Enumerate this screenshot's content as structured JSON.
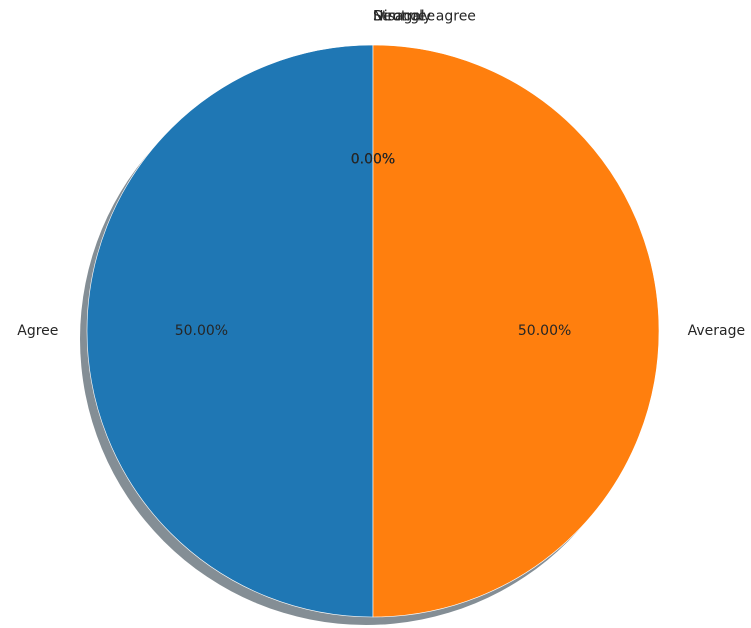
{
  "chart_data": {
    "type": "pie",
    "title": "",
    "categories": [
      "Agree",
      "Average",
      "Strongly agree",
      "Disagree",
      "Neutral"
    ],
    "values": [
      50.0,
      50.0,
      0.0,
      0.0,
      0.0
    ],
    "slice_labels": [
      "50.00%",
      "50.00%",
      "0.00%",
      "0.00%",
      "0.00%"
    ],
    "colors": [
      "#1f77b4",
      "#ff7f0e",
      "#2ca02c",
      "#d62728",
      "#9467bd"
    ],
    "start_angle_deg": 90,
    "direction": "counterclockwise",
    "shadow": true,
    "legend": "none"
  }
}
